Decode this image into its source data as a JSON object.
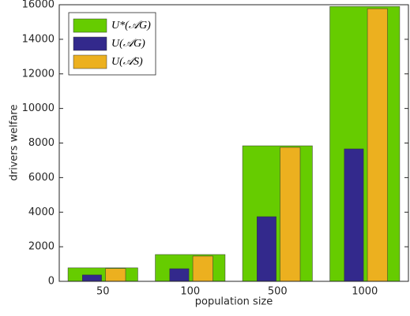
{
  "chart_data": {
    "type": "bar",
    "categories": [
      "50",
      "100",
      "500",
      "1000"
    ],
    "series": [
      {
        "name": "U*(𝒜G)",
        "color": "#66cc00",
        "values": [
          780,
          1550,
          7840,
          15900
        ]
      },
      {
        "name": "U(𝒜G)",
        "color": "#33298c",
        "values": [
          370,
          730,
          3740,
          7660
        ]
      },
      {
        "name": "U(𝒜S)",
        "color": "#ecb01f",
        "values": [
          740,
          1460,
          7750,
          15770
        ]
      }
    ],
    "xlabel": "population size",
    "ylabel": "drivers welfare",
    "ylim": [
      0,
      16000
    ],
    "yticks": [
      0,
      2000,
      4000,
      6000,
      8000,
      10000,
      12000,
      14000,
      16000
    ],
    "grid": false,
    "legend": "upper left"
  }
}
